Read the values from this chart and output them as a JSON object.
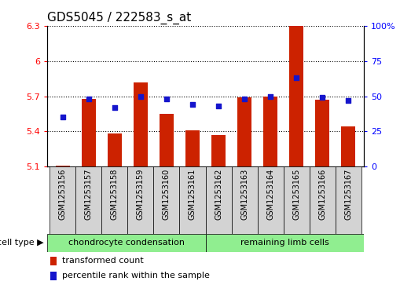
{
  "title": "GDS5045 / 222583_s_at",
  "samples": [
    "GSM1253156",
    "GSM1253157",
    "GSM1253158",
    "GSM1253159",
    "GSM1253160",
    "GSM1253161",
    "GSM1253162",
    "GSM1253163",
    "GSM1253164",
    "GSM1253165",
    "GSM1253166",
    "GSM1253167"
  ],
  "transformed_count": [
    5.11,
    5.68,
    5.38,
    5.82,
    5.55,
    5.41,
    5.37,
    5.69,
    5.7,
    6.3,
    5.67,
    5.44
  ],
  "percentile_rank": [
    35,
    48,
    42,
    50,
    48,
    44,
    43,
    48,
    50,
    63,
    49,
    47
  ],
  "ylim_left": [
    5.1,
    6.3
  ],
  "ylim_right": [
    0,
    100
  ],
  "yticks_left": [
    5.1,
    5.4,
    5.7,
    6.0,
    6.3
  ],
  "yticks_right": [
    0,
    25,
    50,
    75,
    100
  ],
  "ytick_labels_left": [
    "5.1",
    "5.4",
    "5.7",
    "6",
    "6.3"
  ],
  "ytick_labels_right": [
    "0",
    "25",
    "50",
    "75",
    "100%"
  ],
  "bar_color": "#CC2200",
  "dot_color": "#1515CC",
  "bar_width": 0.55,
  "baseline": 5.1,
  "group1_label": "chondrocyte condensation",
  "group2_label": "remaining limb cells",
  "group1_count": 6,
  "group2_count": 6,
  "group_color": "#90EE90",
  "cell_type_label": "cell type",
  "legend_bar_label": "transformed count",
  "legend_dot_label": "percentile rank within the sample",
  "title_fontsize": 11,
  "tick_fontsize": 8,
  "sample_fontsize": 7,
  "legend_fontsize": 8
}
